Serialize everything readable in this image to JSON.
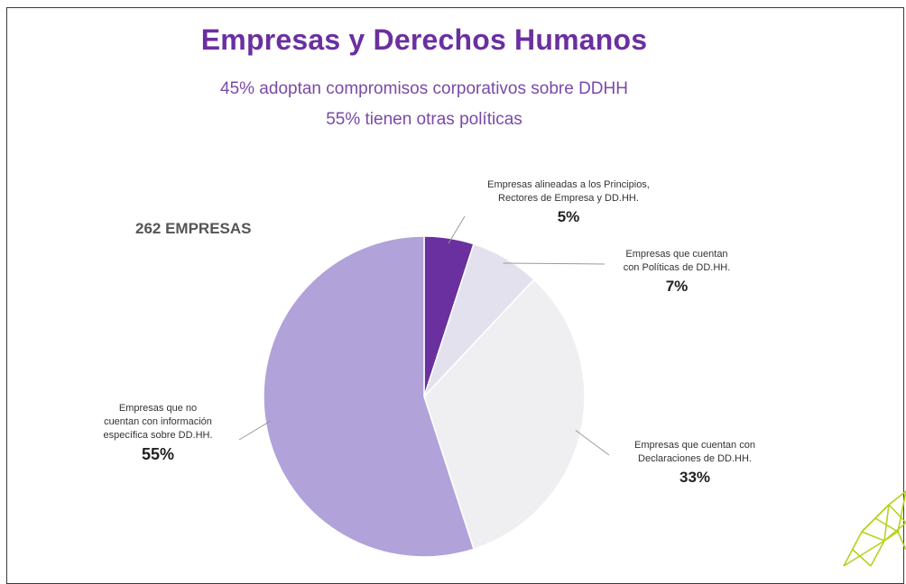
{
  "chart_data": {
    "type": "pie",
    "title": "Empresas y Derechos Humanos",
    "subtitle_lines": [
      "45% adoptan compromisos corporativos sobre DDHH",
      "55% tienen otras políticas"
    ],
    "total_label": "262 EMPRESAS",
    "slices": [
      {
        "label_lines": [
          "Empresas alineadas a los Principios,",
          "Rectores de Empresa y DD.HH."
        ],
        "value": 5,
        "value_label": "5%",
        "color": "#6a30a0"
      },
      {
        "label_lines": [
          "Empresas que cuentan",
          "con Políticas de DD.HH."
        ],
        "value": 7,
        "value_label": "7%",
        "color": "#e4e1ef"
      },
      {
        "label_lines": [
          "Empresas que cuentan con",
          "Declaraciones de DD.HH."
        ],
        "value": 33,
        "value_label": "33%",
        "color": "#efeff1"
      },
      {
        "label_lines": [
          "Empresas que no",
          "cuentan con información",
          "específica sobre DD.HH."
        ],
        "value": 55,
        "value_label": "55%",
        "color": "#b1a2d9"
      }
    ]
  }
}
